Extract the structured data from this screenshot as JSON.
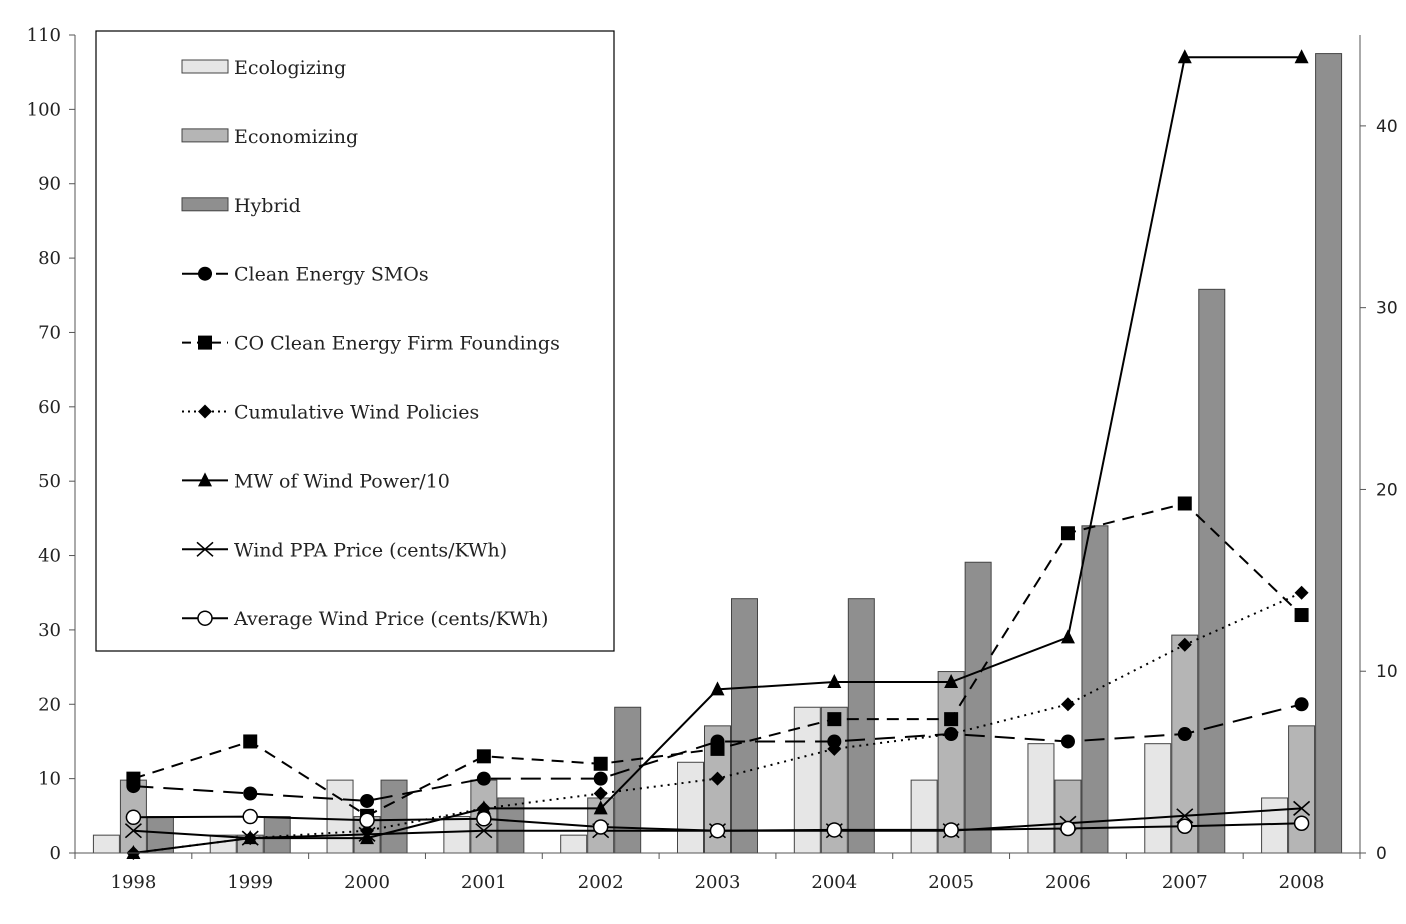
{
  "chart_data": {
    "type": "bar",
    "categories": [
      "1998",
      "1999",
      "2000",
      "2001",
      "2002",
      "2003",
      "2004",
      "2005",
      "2006",
      "2007",
      "2008"
    ],
    "left_axis": {
      "ylim": [
        0,
        110
      ],
      "ticks": [
        "0",
        "10",
        "20",
        "30",
        "40",
        "50",
        "60",
        "70",
        "80",
        "90",
        "100",
        "110"
      ]
    },
    "right_axis": {
      "ylim": [
        0,
        45
      ],
      "ticks": [
        "0",
        "10",
        "20",
        "30",
        "40"
      ]
    },
    "series": [
      {
        "name": "Ecologizing",
        "kind": "bar",
        "axis": "left",
        "fill": "#e6e6e6",
        "values": [
          2.4,
          2.4,
          9.8,
          4.9,
          2.4,
          12.2,
          19.6,
          9.8,
          14.7,
          14.7,
          7.4
        ]
      },
      {
        "name": "Economizing",
        "kind": "bar",
        "axis": "left",
        "fill": "#b5b5b5",
        "values": [
          9.8,
          2.4,
          4.9,
          9.8,
          7.4,
          17.1,
          19.6,
          24.4,
          9.8,
          29.3,
          17.1
        ]
      },
      {
        "name": "Hybrid",
        "kind": "bar",
        "axis": "left",
        "fill": "#8f8f8f",
        "values": [
          4.9,
          4.9,
          9.8,
          7.4,
          19.6,
          34.2,
          34.2,
          39.1,
          44.0,
          75.8,
          107.5
        ]
      },
      {
        "name": "Clean Energy SMOs",
        "kind": "line",
        "axis": "left",
        "marker": "circle-filled",
        "dash": "20,10",
        "values": [
          9,
          8,
          7,
          10,
          10,
          15,
          15,
          16,
          15,
          16,
          20
        ]
      },
      {
        "name": "CO Clean Energy Firm Foundings",
        "kind": "line",
        "axis": "left",
        "marker": "square",
        "dash": "12,8",
        "values": [
          10,
          15,
          5,
          13,
          12,
          14,
          18,
          18,
          43,
          47,
          32
        ]
      },
      {
        "name": "Cumulative  Wind Policies",
        "kind": "line",
        "axis": "left",
        "marker": "diamond",
        "dash": "2,5",
        "values": [
          0,
          2,
          3,
          6,
          8,
          10,
          14,
          16,
          20,
          28,
          35
        ]
      },
      {
        "name": "MW of Wind Power/10",
        "kind": "line",
        "axis": "left",
        "marker": "triangle",
        "dash": "",
        "values": [
          0,
          2,
          2,
          6,
          6,
          22,
          23,
          23,
          29,
          107,
          107
        ]
      },
      {
        "name": "Wind PPA Price (cents/KWh)",
        "kind": "line",
        "axis": "left",
        "marker": "x",
        "dash": "",
        "values": [
          3,
          2,
          2.5,
          3,
          3,
          3,
          3,
          3,
          4,
          5,
          6
        ]
      },
      {
        "name": "Average Wind Price (cents/KWh)",
        "kind": "line",
        "axis": "left",
        "marker": "circle-open",
        "dash": "",
        "values": [
          4.8,
          4.9,
          4.4,
          4.6,
          3.5,
          3.0,
          3.1,
          3.1,
          3.3,
          3.6,
          4.0
        ]
      }
    ],
    "legend_placement": "top-left",
    "grid": false,
    "colors": {
      "line": "#000000",
      "axis": "#555555"
    }
  }
}
